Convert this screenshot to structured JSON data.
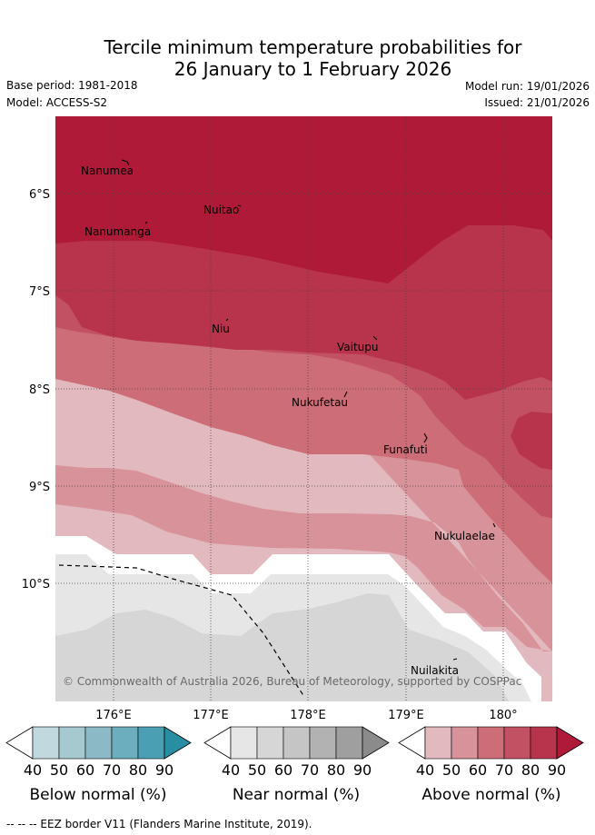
{
  "header": {
    "title_line1": "Tercile minimum temperature probabilities for",
    "title_line2": "26 January to 1 February 2026",
    "base_period": "Base period: 1981-2018",
    "model": "Model: ACCESS-S2",
    "model_run": "Model run: 19/01/2026",
    "issued": "Issued: 21/01/2026"
  },
  "map": {
    "lat_labels": [
      "6°S",
      "7°S",
      "8°S",
      "9°S",
      "10°S"
    ],
    "lon_labels": [
      "176°E",
      "177°E",
      "178°E",
      "179°E",
      "180°"
    ],
    "places": [
      {
        "name": "Nanumea"
      },
      {
        "name": "Nuitao"
      },
      {
        "name": "Nanumanga"
      },
      {
        "name": "Niu"
      },
      {
        "name": "Vaitupu"
      },
      {
        "name": "Nukufetau"
      },
      {
        "name": "Funafuti"
      },
      {
        "name": "Nukulaelae"
      },
      {
        "name": "Nuilakita"
      }
    ],
    "copyright": "© Commonwealth of Australia 2026, Bureau of Meteorology, supported by COSPPac"
  },
  "legend": {
    "ticks": [
      "40",
      "50",
      "60",
      "70",
      "80",
      "90"
    ],
    "below": {
      "title": "Below normal (%)",
      "colors": [
        "#ffffff",
        "#c0d8de",
        "#a6c8cf",
        "#8bb9c5",
        "#6caebd",
        "#4aa0b2",
        "#2a8ea3"
      ]
    },
    "near": {
      "title": "Near normal (%)",
      "colors": [
        "#ffffff",
        "#e6e6e6",
        "#d6d6d6",
        "#c5c5c5",
        "#b2b2b2",
        "#9f9f9f",
        "#8b8b8b"
      ]
    },
    "above": {
      "title": "Above normal (%)",
      "colors": [
        "#ffffff",
        "#e2b9bf",
        "#d8939a",
        "#cd6d77",
        "#c25163",
        "#b8344c",
        "#ae1a37"
      ]
    }
  },
  "footer": "--  --  -- EEZ border V11 (Flanders Marine Institute, 2019)."
}
